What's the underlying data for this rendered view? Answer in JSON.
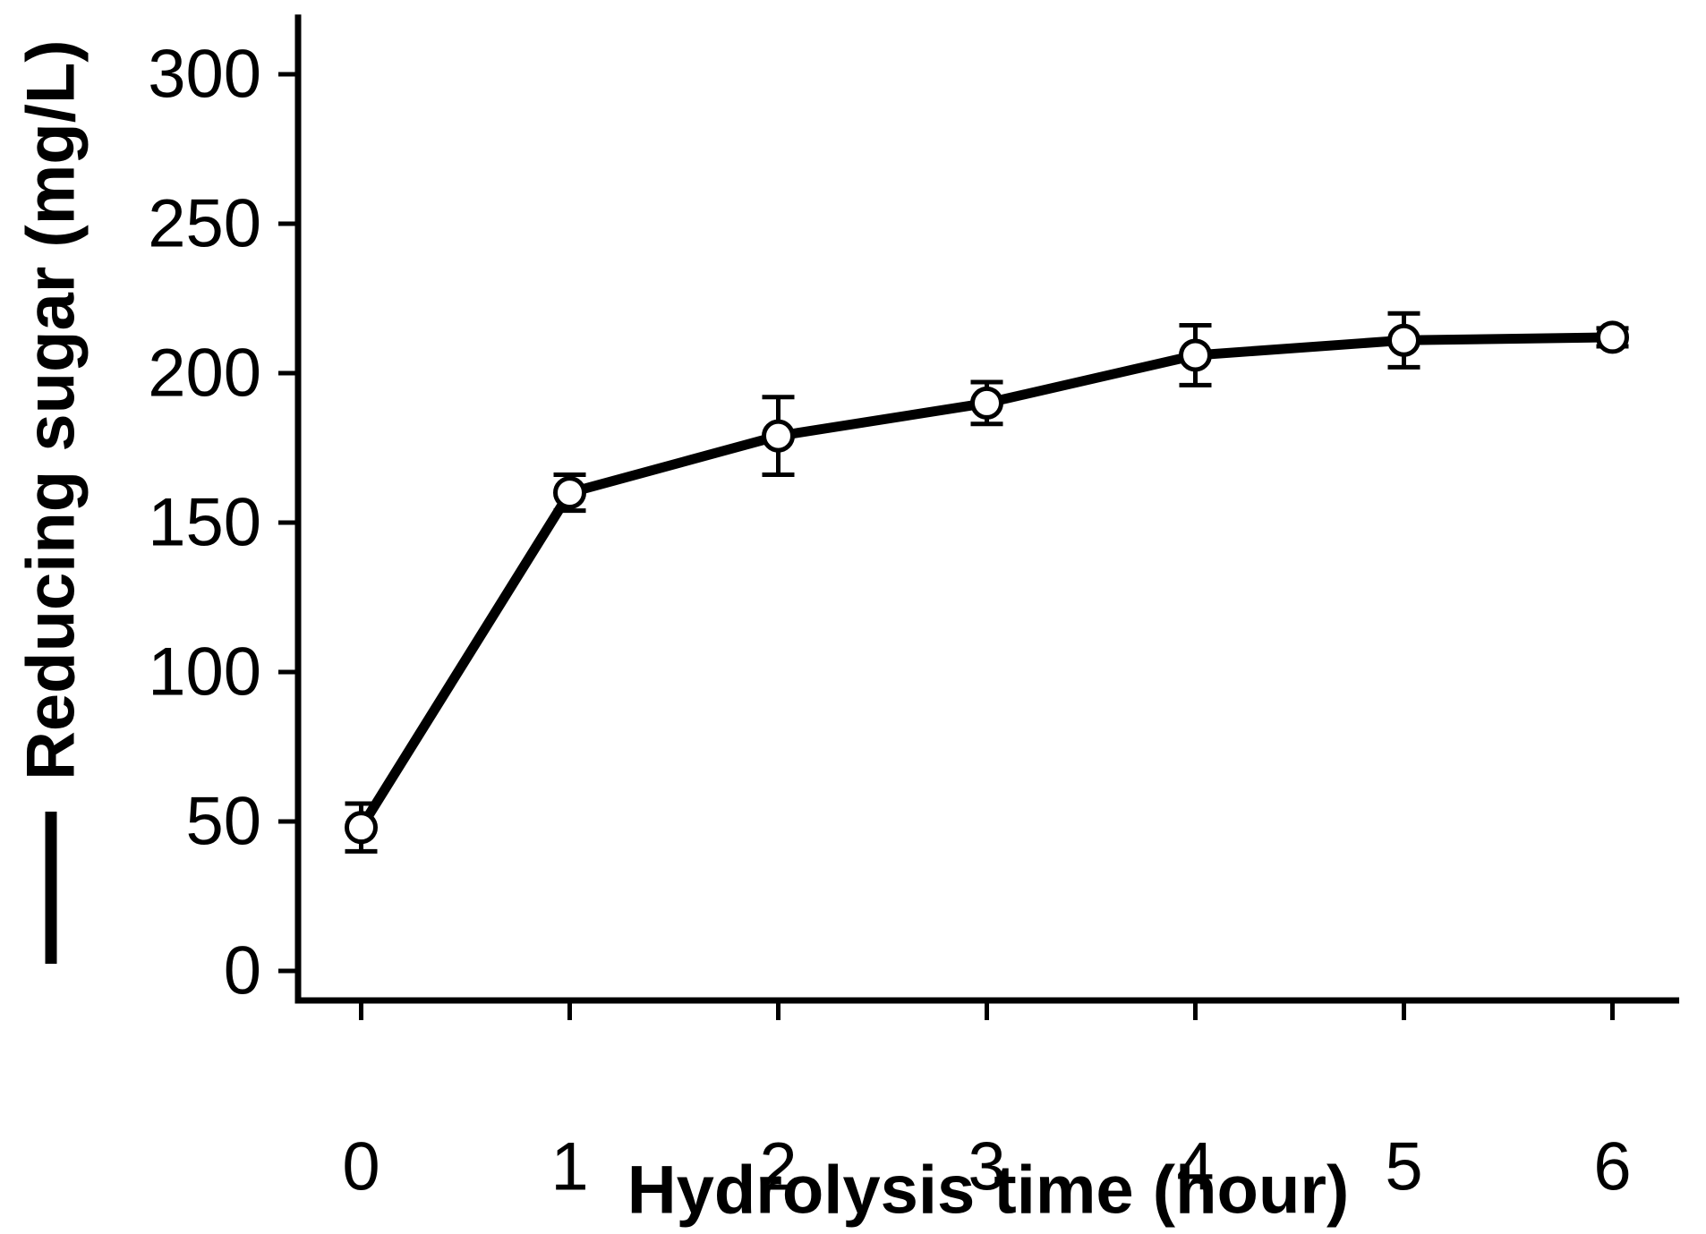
{
  "figure": {
    "background": "#ffffff",
    "foreground": "#000000"
  },
  "chart_data": {
    "type": "line",
    "title": "",
    "xlabel": "Hydrolysis time (hour)",
    "ylabel": "Reducing sugar (mg/L)",
    "ylabel_line_sample": true,
    "x": [
      0,
      1,
      2,
      3,
      4,
      5,
      6
    ],
    "series": [
      {
        "name": "Reducing sugar (mg/L)",
        "marker": "open-circle",
        "line_color": "#000000",
        "marker_fill": "#ffffff",
        "values": [
          48,
          160,
          179,
          190,
          206,
          211,
          212
        ],
        "error_bars": [
          8,
          6,
          13,
          7,
          10,
          9,
          3
        ]
      }
    ],
    "xticks": [
      0,
      1,
      2,
      3,
      4,
      5,
      6
    ],
    "yticks": [
      0,
      50,
      100,
      150,
      200,
      250,
      300
    ],
    "xlim": [
      -0.3,
      6.32
    ],
    "ylim": [
      -10,
      320
    ],
    "grid": false,
    "legend_position": "in-ylabel"
  }
}
